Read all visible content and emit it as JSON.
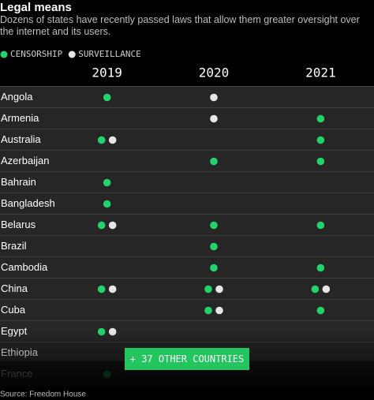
{
  "chart_data": {
    "type": "matrix",
    "title": "Legal means",
    "subtitle": "Dozens of states have recently passed laws that allow them greater oversight over the internet and its users.",
    "columns": [
      "2019",
      "2020",
      "2021"
    ],
    "rows": [
      "Angola",
      "Armenia",
      "Australia",
      "Azerbaijan",
      "Bahrain",
      "Bangladesh",
      "Belarus",
      "Brazil",
      "Cambodia",
      "China",
      "Cuba",
      "Egypt",
      "Ethiopia",
      "France"
    ],
    "series": [
      {
        "name": "CENSORSHIP",
        "color": "#22d36a",
        "values": [
          [
            1,
            0,
            0
          ],
          [
            0,
            0,
            1
          ],
          [
            1,
            0,
            1
          ],
          [
            0,
            1,
            1
          ],
          [
            1,
            0,
            0
          ],
          [
            1,
            0,
            0
          ],
          [
            1,
            1,
            1
          ],
          [
            0,
            1,
            0
          ],
          [
            0,
            1,
            1
          ],
          [
            1,
            1,
            1
          ],
          [
            0,
            1,
            1
          ],
          [
            1,
            0,
            0
          ],
          [
            0,
            0,
            0
          ],
          [
            1,
            0,
            0
          ]
        ]
      },
      {
        "name": "SURVEILLANCE",
        "color": "#e6e6e6",
        "values": [
          [
            0,
            1,
            0
          ],
          [
            0,
            1,
            0
          ],
          [
            1,
            0,
            0
          ],
          [
            0,
            0,
            0
          ],
          [
            0,
            0,
            0
          ],
          [
            0,
            0,
            0
          ],
          [
            1,
            0,
            0
          ],
          [
            0,
            0,
            0
          ],
          [
            0,
            0,
            0
          ],
          [
            1,
            1,
            1
          ],
          [
            0,
            1,
            0
          ],
          [
            1,
            0,
            0
          ],
          [
            0,
            0,
            0
          ],
          [
            0,
            0,
            0
          ]
        ]
      }
    ],
    "button": "+ 37 OTHER COUNTRIES",
    "source": "Source: Freedom House"
  }
}
